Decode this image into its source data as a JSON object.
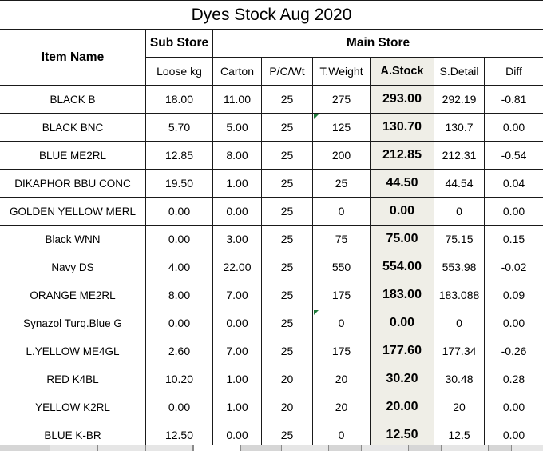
{
  "title": "Dyes Stock Aug 2020",
  "headers": {
    "item_name": "Item Name",
    "sub_store": "Sub Store",
    "main_store": "Main Store",
    "loose_kg": "Loose kg",
    "carton": "Carton",
    "pcwt": "P/C/Wt",
    "tweight": "T.Weight",
    "astock": "A.Stock",
    "sdetail": "S.Detail",
    "diff": "Diff"
  },
  "rows": [
    {
      "item": "BLACK B",
      "loose": "18.00",
      "carton": "11.00",
      "pcwt": "25",
      "tweight": "275",
      "astock": "293.00",
      "sdetail": "292.19",
      "diff": "-0.81"
    },
    {
      "item": "BLACK BNC",
      "loose": "5.70",
      "carton": "5.00",
      "pcwt": "25",
      "tweight": "125",
      "astock": "130.70",
      "sdetail": "130.7",
      "diff": "0.00"
    },
    {
      "item": "BLUE ME2RL",
      "loose": "12.85",
      "carton": "8.00",
      "pcwt": "25",
      "tweight": "200",
      "astock": "212.85",
      "sdetail": "212.31",
      "diff": "-0.54"
    },
    {
      "item": "DIKAPHOR BBU CONC",
      "loose": "19.50",
      "carton": "1.00",
      "pcwt": "25",
      "tweight": "25",
      "astock": "44.50",
      "sdetail": "44.54",
      "diff": "0.04"
    },
    {
      "item": "GOLDEN YELLOW MERL",
      "loose": "0.00",
      "carton": "0.00",
      "pcwt": "25",
      "tweight": "0",
      "astock": "0.00",
      "sdetail": "0",
      "diff": "0.00"
    },
    {
      "item": "Black WNN",
      "loose": "0.00",
      "carton": "3.00",
      "pcwt": "25",
      "tweight": "75",
      "astock": "75.00",
      "sdetail": "75.15",
      "diff": "0.15"
    },
    {
      "item": "Navy DS",
      "loose": "4.00",
      "carton": "22.00",
      "pcwt": "25",
      "tweight": "550",
      "astock": "554.00",
      "sdetail": "553.98",
      "diff": "-0.02"
    },
    {
      "item": "ORANGE ME2RL",
      "loose": "8.00",
      "carton": "7.00",
      "pcwt": "25",
      "tweight": "175",
      "astock": "183.00",
      "sdetail": "183.088",
      "diff": "0.09"
    },
    {
      "item": "Synazol Turq.Blue G",
      "loose": "0.00",
      "carton": "0.00",
      "pcwt": "25",
      "tweight": "0",
      "astock": "0.00",
      "sdetail": "0",
      "diff": "0.00"
    },
    {
      "item": "L.YELLOW ME4GL",
      "loose": "2.60",
      "carton": "7.00",
      "pcwt": "25",
      "tweight": "175",
      "astock": "177.60",
      "sdetail": "177.34",
      "diff": "-0.26"
    },
    {
      "item": "RED K4BL",
      "loose": "10.20",
      "carton": "1.00",
      "pcwt": "20",
      "tweight": "20",
      "astock": "30.20",
      "sdetail": "30.48",
      "diff": "0.28"
    },
    {
      "item": "YELLOW K2RL",
      "loose": "0.00",
      "carton": "1.00",
      "pcwt": "20",
      "tweight": "20",
      "astock": "20.00",
      "sdetail": "20",
      "diff": "0.00"
    },
    {
      "item": "BLUE K-BR",
      "loose": "12.50",
      "carton": "0.00",
      "pcwt": "25",
      "tweight": "0",
      "astock": "12.50",
      "sdetail": "12.5",
      "diff": "0.00"
    }
  ],
  "colors": {
    "astock_fill": "#efeee7",
    "grid_line": "#1a1a1a",
    "comment_marker": "#1f7a3a"
  }
}
